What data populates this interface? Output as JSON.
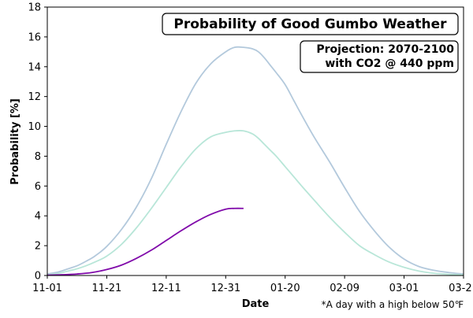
{
  "chart_data": {
    "type": "line",
    "title": "Probability of Good Gumbo Weather",
    "subtitle_lines": [
      "Projection: 2070-2100",
      "with CO2 @ 440 ppm"
    ],
    "xlabel": "Date",
    "ylabel": "Probability [%]",
    "footnote": "*A day with a high below 50℉",
    "x_tick_labels": [
      "11-01",
      "11-21",
      "12-11",
      "12-31",
      "01-20",
      "02-09",
      "03-01",
      "03-21"
    ],
    "x_ticks_day_index": [
      0,
      20,
      40,
      60,
      80,
      100,
      120,
      140
    ],
    "xlim_day_index": [
      0,
      140
    ],
    "ylim": [
      0,
      18
    ],
    "y_ticks": [
      0,
      2,
      4,
      6,
      8,
      10,
      12,
      14,
      16,
      18
    ],
    "grid": false,
    "series": [
      {
        "color": "#b3c9dc",
        "x_day_index": [
          0,
          4,
          7,
          10,
          13,
          16,
          20,
          25,
          30,
          35,
          40,
          45,
          50,
          55,
          60,
          63,
          66,
          69,
          71,
          73,
          75,
          77,
          80,
          83,
          86,
          90,
          95,
          100,
          105,
          110,
          115,
          120,
          125,
          130,
          135,
          140
        ],
        "values": [
          0.1,
          0.25,
          0.45,
          0.65,
          0.95,
          1.3,
          1.95,
          3.1,
          4.6,
          6.5,
          8.8,
          11.0,
          12.9,
          14.2,
          15.0,
          15.3,
          15.3,
          15.2,
          15.0,
          14.6,
          14.1,
          13.6,
          12.8,
          11.7,
          10.6,
          9.2,
          7.6,
          5.9,
          4.3,
          3.0,
          1.9,
          1.1,
          0.6,
          0.35,
          0.2,
          0.1
        ]
      },
      {
        "color": "#b8e6d8",
        "x_day_index": [
          0,
          4,
          7,
          10,
          13,
          16,
          20,
          25,
          30,
          35,
          40,
          45,
          50,
          55,
          60,
          63,
          66,
          69,
          71,
          73,
          75,
          77,
          80,
          83,
          86,
          90,
          95,
          100,
          105,
          110,
          115,
          120,
          125,
          130,
          135,
          140
        ],
        "values": [
          0.05,
          0.15,
          0.3,
          0.45,
          0.65,
          0.9,
          1.3,
          2.1,
          3.2,
          4.5,
          5.9,
          7.3,
          8.5,
          9.3,
          9.6,
          9.7,
          9.7,
          9.5,
          9.2,
          8.8,
          8.4,
          8.0,
          7.3,
          6.6,
          5.9,
          5.0,
          3.9,
          2.9,
          2.0,
          1.4,
          0.9,
          0.55,
          0.3,
          0.15,
          0.08,
          0.05
        ]
      },
      {
        "color": "#800aaa",
        "x_day_index": [
          0,
          5,
          10,
          15,
          20,
          25,
          30,
          35,
          40,
          45,
          50,
          55,
          60,
          63,
          66
        ],
        "values": [
          0.02,
          0.05,
          0.1,
          0.2,
          0.4,
          0.7,
          1.15,
          1.7,
          2.35,
          3.0,
          3.6,
          4.1,
          4.45,
          4.5,
          4.5
        ]
      }
    ]
  }
}
